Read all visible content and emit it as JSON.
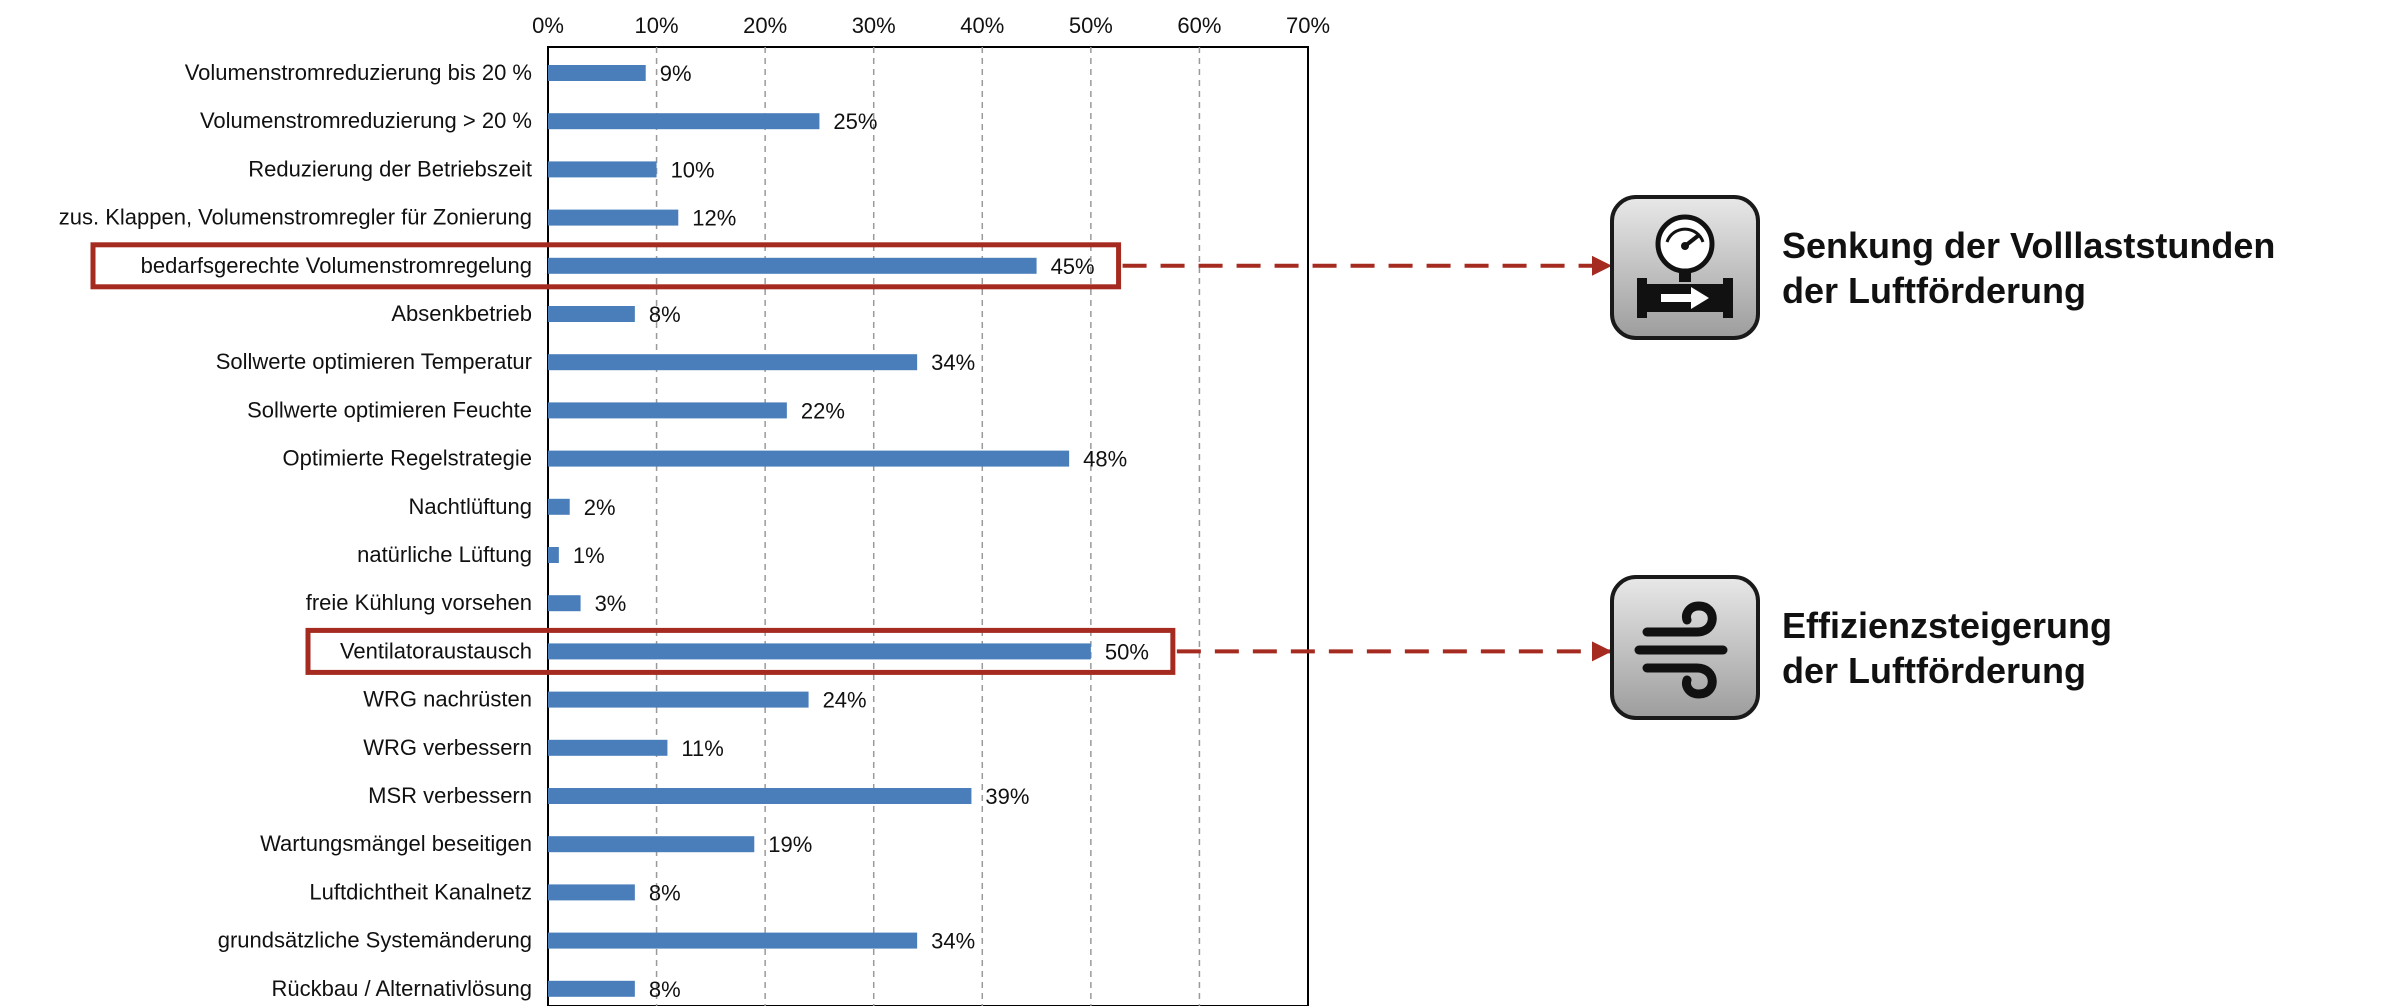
{
  "chart_data": {
    "type": "bar",
    "orientation": "horizontal",
    "categories": [
      "Volumenstromreduzierung bis 20 %",
      "Volumenstromreduzierung > 20 %",
      "Reduzierung der Betriebszeit",
      "zus. Klappen, Volumenstromregler für Zonierung",
      "bedarfsgerechte Volumenstromregelung",
      "Absenkbetrieb",
      "Sollwerte optimieren Temperatur",
      "Sollwerte optimieren Feuchte",
      "Optimierte Regelstrategie",
      "Nachtlüftung",
      "natürliche Lüftung",
      "freie Kühlung vorsehen",
      "Ventilatoraustausch",
      "WRG nachrüsten",
      "WRG verbessern",
      "MSR verbessern",
      "Wartungsmängel beseitigen",
      "Luftdichtheit Kanalnetz",
      "grundsätzliche Systemänderung",
      "Rückbau / Alternativlösung"
    ],
    "values": [
      9,
      25,
      10,
      12,
      45,
      8,
      34,
      22,
      48,
      2,
      1,
      3,
      50,
      24,
      11,
      39,
      19,
      8,
      34,
      8
    ],
    "value_labels": [
      "9%",
      "25%",
      "10%",
      "12%",
      "45%",
      "8%",
      "34%",
      "22%",
      "48%",
      "2%",
      "1%",
      "3%",
      "50%",
      "24%",
      "11%",
      "39%",
      "19%",
      "8%",
      "34%",
      "8%"
    ],
    "x_ticks": [
      "0%",
      "10%",
      "20%",
      "30%",
      "40%",
      "50%",
      "60%",
      "70%"
    ],
    "xlim": [
      0,
      70
    ],
    "x_axis_position": "top",
    "grid": "vertical dashed",
    "legend": "none",
    "bar_color": "#4a7ebb",
    "highlighted_categories": [
      "bedarfsgerechte Volumenstromregelung",
      "Ventilatoraustausch"
    ],
    "highlight_color": "#a52a1f"
  },
  "callouts": [
    {
      "icon": "pressure-gauge-pipe-icon",
      "line1": "Senkung der Volllaststunden",
      "line2": "der Luftförderung",
      "target_category": "bedarfsgerechte Volumenstromregelung"
    },
    {
      "icon": "wind-icon",
      "line1": "Effizienzsteigerung",
      "line2": "der Luftförderung",
      "target_category": "Ventilatoraustausch"
    }
  ]
}
